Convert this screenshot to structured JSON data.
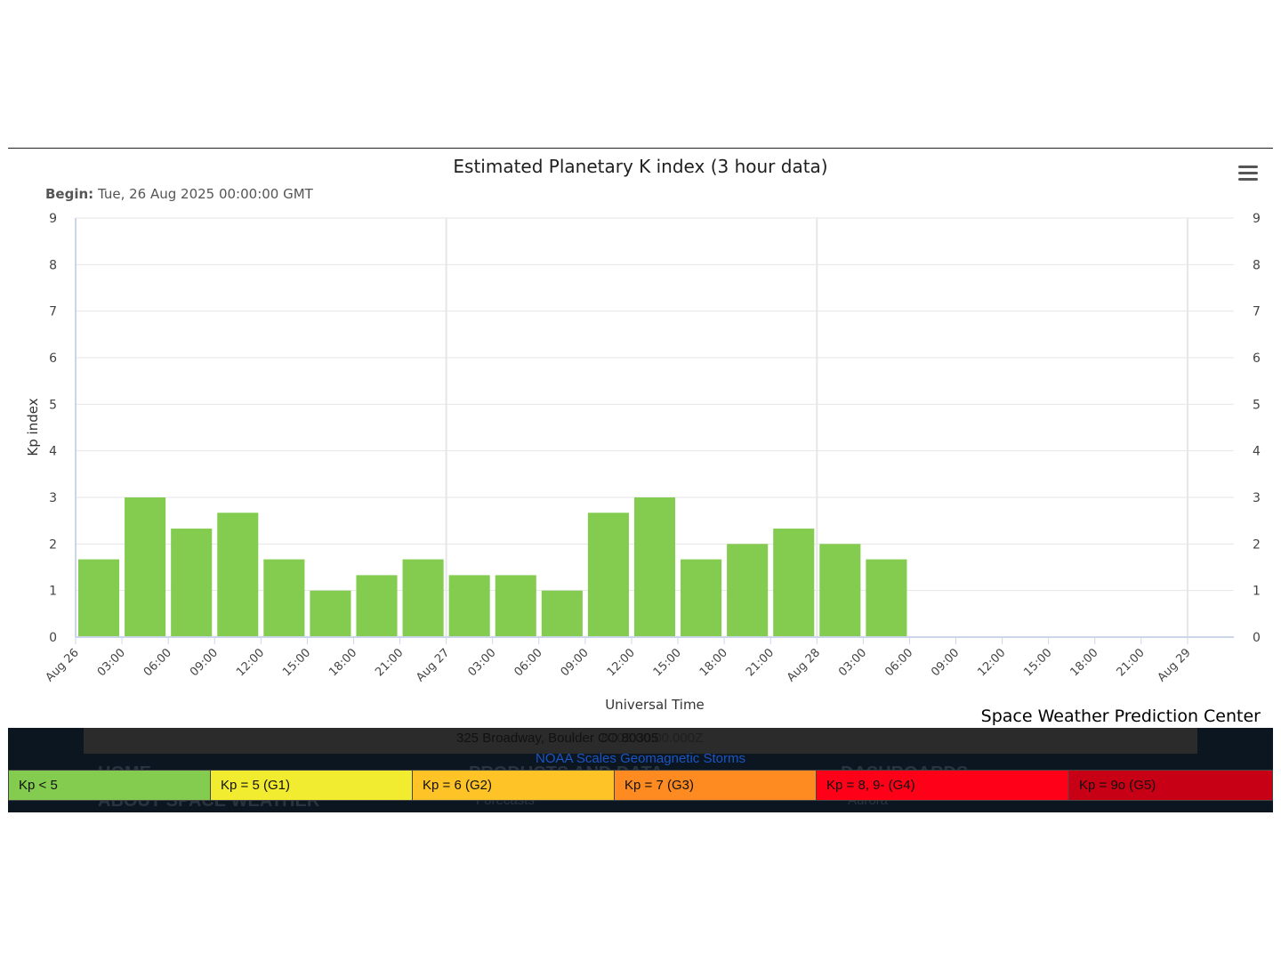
{
  "chart_data": {
    "type": "bar",
    "title": "Estimated Planetary K index (3 hour data)",
    "subtitle_label": "Begin:",
    "subtitle_value": "Tue, 26 Aug 2025 00:00:00 GMT",
    "xlabel": "Universal Time",
    "ylabel": "Kp index",
    "ylim": [
      0,
      9
    ],
    "yticks": [
      "0",
      "1",
      "2",
      "3",
      "4",
      "5",
      "6",
      "7",
      "8",
      "9"
    ],
    "xticks": [
      "Aug 26",
      "03:00",
      "06:00",
      "09:00",
      "12:00",
      "15:00",
      "18:00",
      "21:00",
      "Aug 27",
      "03:00",
      "06:00",
      "09:00",
      "12:00",
      "15:00",
      "18:00",
      "21:00",
      "Aug 28",
      "03:00",
      "06:00",
      "09:00",
      "12:00",
      "15:00",
      "18:00",
      "21:00",
      "Aug 29"
    ],
    "values": [
      1.67,
      3.0,
      2.33,
      2.67,
      1.67,
      1.0,
      1.33,
      1.67,
      1.33,
      1.33,
      1.0,
      2.67,
      3.0,
      1.67,
      2.0,
      2.33,
      2.0,
      1.67
    ],
    "bar_color": "#83cc4f",
    "grid": true,
    "major_gridlines_at": [
      "Aug 27",
      "Aug 28",
      "Aug 29"
    ]
  },
  "credit": "Space Weather Prediction Center",
  "footer": {
    "address": "325 Broadway, Boulder CO 80305",
    "ghost_date_fragment": "8T03:00:00.000Z",
    "ghost_nav_left_top": "HOME",
    "ghost_nav_left_bottom": "ABOUT SPACE WEATHER",
    "ghost_nav_mid_top": "PRODUCTS AND DATA",
    "ghost_nav_mid_bottom": "Forecasts",
    "ghost_nav_right_top": "DASHBOARDS",
    "ghost_nav_right_bottom": "Aurora",
    "scales_title": "NOAA Scales Geomagnetic Storms"
  },
  "legend": [
    {
      "label": "Kp < 5",
      "color": "#83cc4f"
    },
    {
      "label": "Kp = 5 (G1)",
      "color": "#f2ec30"
    },
    {
      "label": "Kp = 6 (G2)",
      "color": "#fdc327"
    },
    {
      "label": "Kp = 7 (G3)",
      "color": "#fd8b21"
    },
    {
      "label": "Kp = 8, 9- (G4)",
      "color": "#ff0019"
    },
    {
      "label": "Kp = 9o (G5)",
      "color": "#c70016"
    }
  ]
}
